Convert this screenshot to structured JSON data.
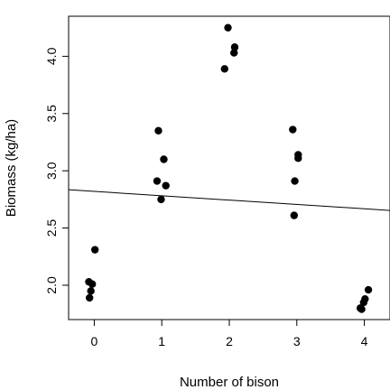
{
  "chart_data": {
    "type": "scatter",
    "xlabel": "Number of bison",
    "ylabel": "Biomass (kg/ha)",
    "xlim": [
      -0.38,
      4.38
    ],
    "ylim": [
      1.7,
      4.35
    ],
    "x_ticks": [
      0,
      1,
      2,
      3,
      4
    ],
    "y_ticks": [
      2.0,
      2.5,
      3.0,
      3.5,
      4.0
    ],
    "y_tick_labels": [
      "2.0",
      "2.5",
      "3.0",
      "3.5",
      "4.0"
    ],
    "grid": false,
    "legend": "none",
    "point_color": "#000000",
    "points": [
      {
        "x": -0.08,
        "y": 2.03
      },
      {
        "x": -0.03,
        "y": 2.01
      },
      {
        "x": -0.05,
        "y": 1.95
      },
      {
        "x": -0.07,
        "y": 1.89
      },
      {
        "x": 0.01,
        "y": 2.31
      },
      {
        "x": 0.95,
        "y": 3.35
      },
      {
        "x": 1.03,
        "y": 3.1
      },
      {
        "x": 0.93,
        "y": 2.91
      },
      {
        "x": 1.06,
        "y": 2.87
      },
      {
        "x": 0.99,
        "y": 2.75
      },
      {
        "x": 1.98,
        "y": 4.25
      },
      {
        "x": 2.08,
        "y": 4.08
      },
      {
        "x": 2.07,
        "y": 4.03
      },
      {
        "x": 1.93,
        "y": 3.89
      },
      {
        "x": 2.94,
        "y": 3.36
      },
      {
        "x": 3.02,
        "y": 3.14
      },
      {
        "x": 3.02,
        "y": 3.11
      },
      {
        "x": 2.97,
        "y": 2.91
      },
      {
        "x": 2.96,
        "y": 2.61
      },
      {
        "x": 4.06,
        "y": 1.96
      },
      {
        "x": 4.01,
        "y": 1.88
      },
      {
        "x": 3.99,
        "y": 1.85
      },
      {
        "x": 3.94,
        "y": 1.8
      },
      {
        "x": 3.96,
        "y": 1.79
      }
    ],
    "regression_line": {
      "intercept": 2.82,
      "slope": -0.038
    }
  }
}
